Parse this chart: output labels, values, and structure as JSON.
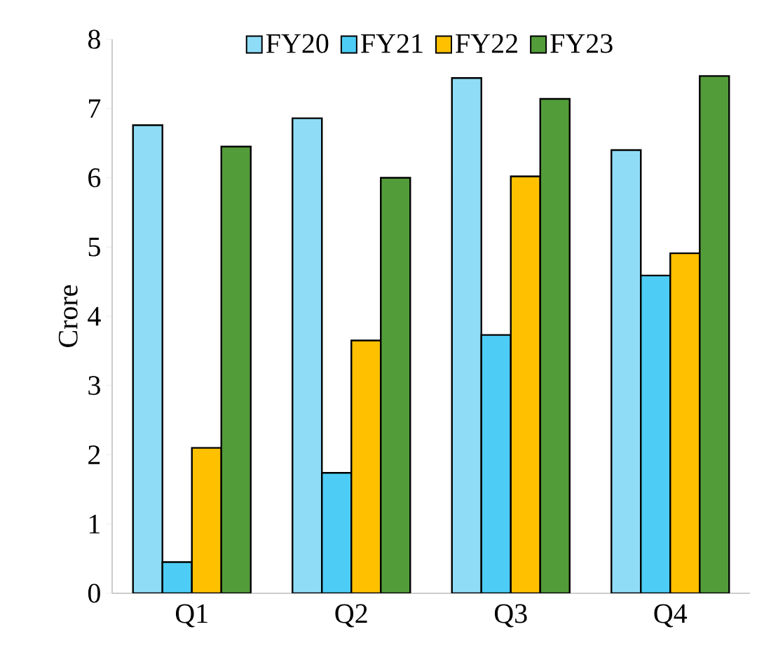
{
  "chart_data": {
    "type": "bar",
    "ylabel": "Crore",
    "categories": [
      "Q1",
      "Q2",
      "Q3",
      "Q4"
    ],
    "series": [
      {
        "name": "FY20",
        "color": "#8fdcf7",
        "values": [
          6.76,
          6.86,
          7.44,
          6.4
        ]
      },
      {
        "name": "FY21",
        "color": "#4dcdf5",
        "values": [
          0.45,
          1.74,
          3.73,
          4.59
        ]
      },
      {
        "name": "FY22",
        "color": "#ffc000",
        "values": [
          2.1,
          3.65,
          6.02,
          4.91
        ]
      },
      {
        "name": "FY23",
        "color": "#539c3a",
        "values": [
          6.45,
          6.0,
          7.14,
          7.47
        ]
      }
    ],
    "ylim": [
      0,
      8
    ],
    "yticks": [
      0,
      1,
      2,
      3,
      4,
      5,
      6,
      7,
      8
    ],
    "legend": "top",
    "grid": false
  }
}
